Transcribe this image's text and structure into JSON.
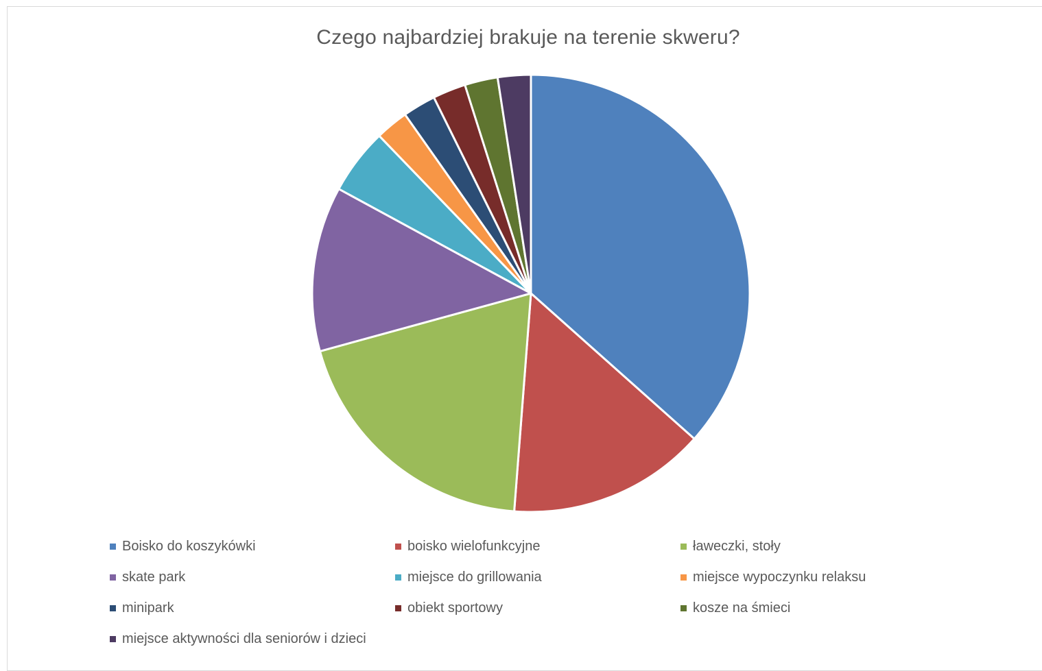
{
  "chart_data": {
    "type": "pie",
    "title": "Czego najbardziej brakuje na terenie skweru?",
    "legend_position": "bottom",
    "slices": [
      {
        "label": "Boisko do koszykówki",
        "value": 15,
        "color": "#4F81BD"
      },
      {
        "label": "boisko wielofunkcyjne",
        "value": 6,
        "color": "#C0504D"
      },
      {
        "label": "ławeczki, stoły",
        "value": 8,
        "color": "#9BBB59"
      },
      {
        "label": "skate park",
        "value": 5,
        "color": "#8064A2"
      },
      {
        "label": "miejsce do grillowania",
        "value": 2,
        "color": "#4BACC6"
      },
      {
        "label": "miejsce wypoczynku relaksu",
        "value": 1,
        "color": "#F79646"
      },
      {
        "label": "minipark",
        "value": 1,
        "color": "#2C4D75"
      },
      {
        "label": "obiekt sportowy",
        "value": 1,
        "color": "#772C2A"
      },
      {
        "label": "kosze na śmieci",
        "value": 1,
        "color": "#5F7530"
      },
      {
        "label": "miejsce aktywności dla seniorów i dzieci",
        "value": 1,
        "color": "#4D3B62"
      }
    ]
  }
}
